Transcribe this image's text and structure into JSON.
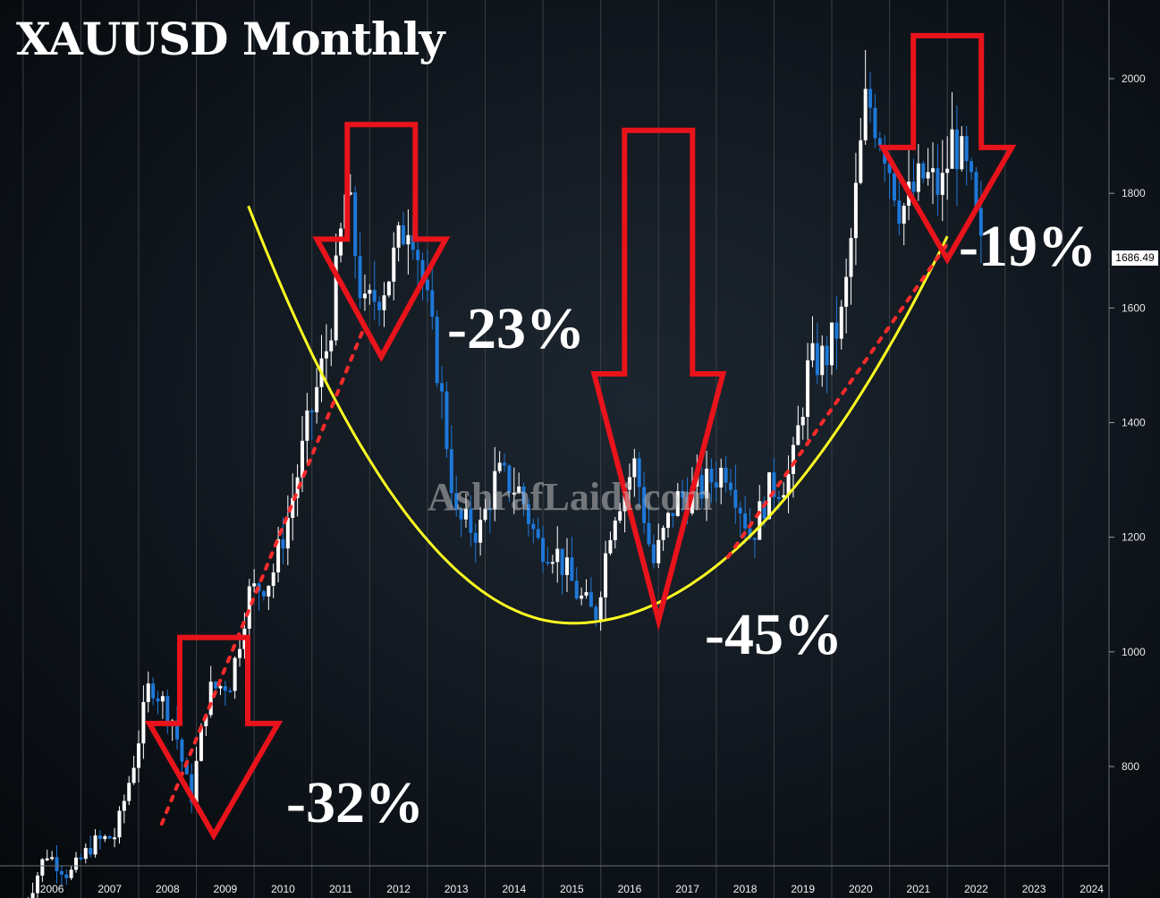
{
  "chart_data": {
    "type": "candlestick",
    "title": "XAUUSD Monthly",
    "watermark": "AshrafLaidi.com",
    "last_price_label": "1686.49",
    "x_ticks": [
      "2006",
      "2007",
      "2008",
      "2009",
      "2010",
      "2011",
      "2012",
      "2013",
      "2014",
      "2015",
      "2016",
      "2017",
      "2018",
      "2019",
      "2020",
      "2021",
      "2022",
      "2023",
      "2024"
    ],
    "y_ticks": [
      800,
      1000,
      1200,
      1400,
      1600,
      1800,
      2000
    ],
    "ylim": [
      680,
      2100
    ],
    "xlim": [
      2005.6,
      2024.8
    ],
    "grid": true,
    "annotations": [
      {
        "label": "-32%",
        "x": 2009.3,
        "top": 1025,
        "tail": 875,
        "tip": 680
      },
      {
        "label": "-23%",
        "x": 2012.2,
        "top": 1920,
        "tail": 1720,
        "tip": 1515
      },
      {
        "label": "-45%",
        "x": 2017.0,
        "top": 1910,
        "tail": 1485,
        "tip": 1055
      },
      {
        "label": "-19%",
        "x": 2022.0,
        "top": 2075,
        "tail": 1880,
        "tip": 1685
      }
    ],
    "cup_curve": {
      "color": "#ffff22",
      "start": [
        2009.9,
        1778
      ],
      "bottom": [
        2015.5,
        1050
      ],
      "end": [
        2022.0,
        1725
      ]
    },
    "trendlines": [
      {
        "color": "#ff2b2b",
        "from": [
          2008.4,
          700
        ],
        "to": [
          2011.9,
          1565
        ]
      },
      {
        "color": "#ff2b2b",
        "from": [
          2018.2,
          1165
        ],
        "to": [
          2022.0,
          1712
        ]
      }
    ],
    "monthly_closes_approx": [
      [
        2006.0,
        550
      ],
      [
        2006.4,
        650
      ],
      [
        2006.8,
        610
      ],
      [
        2007.2,
        665
      ],
      [
        2007.6,
        680
      ],
      [
        2007.9,
        800
      ],
      [
        2008.2,
        950
      ],
      [
        2008.6,
        880
      ],
      [
        2008.9,
        740
      ],
      [
        2009.2,
        930
      ],
      [
        2009.6,
        950
      ],
      [
        2009.9,
        1100
      ],
      [
        2010.3,
        1130
      ],
      [
        2010.6,
        1240
      ],
      [
        2010.9,
        1380
      ],
      [
        2011.3,
        1550
      ],
      [
        2011.6,
        1810
      ],
      [
        2011.9,
        1590
      ],
      [
        2012.3,
        1650
      ],
      [
        2012.7,
        1770
      ],
      [
        2012.9,
        1660
      ],
      [
        2013.2,
        1480
      ],
      [
        2013.5,
        1230
      ],
      [
        2013.9,
        1210
      ],
      [
        2014.2,
        1310
      ],
      [
        2014.6,
        1280
      ],
      [
        2014.9,
        1190
      ],
      [
        2015.2,
        1180
      ],
      [
        2015.6,
        1100
      ],
      [
        2015.9,
        1060
      ],
      [
        2016.2,
        1240
      ],
      [
        2016.6,
        1330
      ],
      [
        2016.9,
        1150
      ],
      [
        2017.3,
        1265
      ],
      [
        2017.7,
        1280
      ],
      [
        2017.9,
        1300
      ],
      [
        2018.2,
        1325
      ],
      [
        2018.6,
        1200
      ],
      [
        2018.9,
        1280
      ],
      [
        2019.3,
        1310
      ],
      [
        2019.6,
        1500
      ],
      [
        2019.9,
        1515
      ],
      [
        2020.2,
        1590
      ],
      [
        2020.6,
        1970
      ],
      [
        2020.9,
        1890
      ],
      [
        2021.2,
        1770
      ],
      [
        2021.6,
        1830
      ],
      [
        2021.9,
        1805
      ],
      [
        2022.1,
        1900
      ],
      [
        2022.4,
        1810
      ],
      [
        2022.6,
        1686
      ]
    ]
  },
  "colors": {
    "up": "#ffffff",
    "down": "#1e78d8",
    "arrow": "#e8131b",
    "grid": "#3a3f45"
  }
}
